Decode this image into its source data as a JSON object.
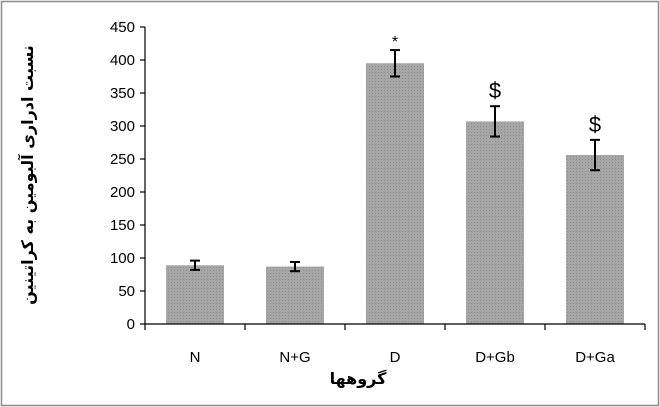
{
  "chart_data": {
    "type": "bar",
    "title": "",
    "xlabel": "گروهها",
    "ylabel": "نسبت ادراری آلبومین به کراتینین",
    "categories": [
      "N",
      "N+G",
      "D",
      "D+Gb",
      "D+Ga"
    ],
    "values": [
      89,
      87,
      395,
      307,
      256
    ],
    "errors": [
      7,
      7,
      20,
      23,
      23
    ],
    "annotations": [
      "",
      "",
      "*",
      "$",
      "$"
    ],
    "ylim": [
      0,
      450
    ],
    "yticks": [
      0,
      50,
      100,
      150,
      200,
      250,
      300,
      350,
      400,
      450
    ],
    "grid": false,
    "legend": "none",
    "colors": {
      "bar": "#a6a6a6",
      "bar_stripe": "#8f8f8f",
      "axis": "#000000",
      "border": "#8c8c8c"
    }
  }
}
